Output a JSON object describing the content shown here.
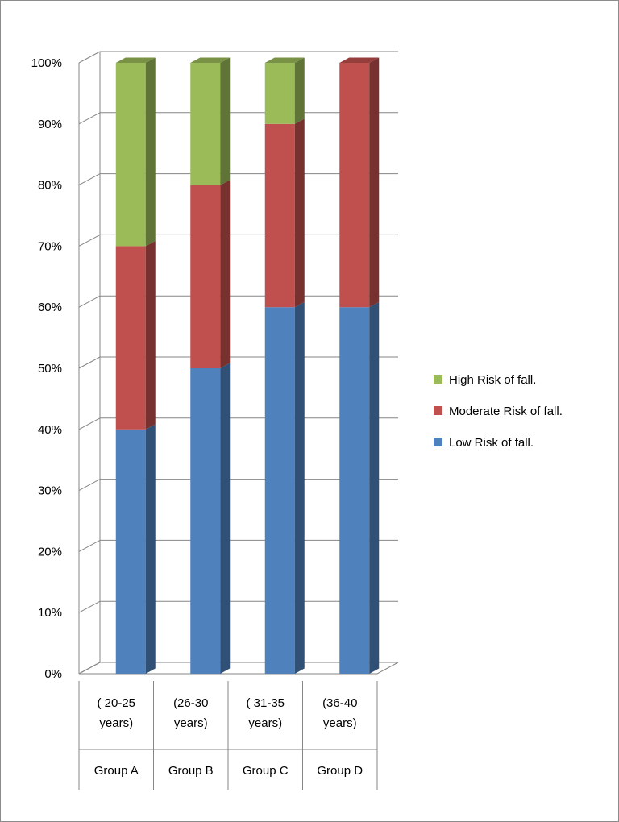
{
  "chart_data": {
    "type": "bar",
    "stacked": true,
    "three_d": true,
    "percent_stacked": true,
    "categories": [
      {
        "range": [
          "( 20-25",
          "years)"
        ],
        "group": "Group A"
      },
      {
        "range": [
          "(26-30",
          "years)"
        ],
        "group": "Group B"
      },
      {
        "range": [
          "( 31-35",
          "years)"
        ],
        "group": "Group C"
      },
      {
        "range": [
          "(36-40",
          "years)"
        ],
        "group": "Group D"
      }
    ],
    "series": [
      {
        "name": "Low Risk of fall.",
        "color": "#4f81bd",
        "values": [
          40,
          50,
          60,
          60
        ]
      },
      {
        "name": "Moderate Risk of fall.",
        "color": "#c0504d",
        "values": [
          30,
          30,
          30,
          40
        ]
      },
      {
        "name": "High Risk of fall.",
        "color": "#9bbb59",
        "values": [
          30,
          20,
          10,
          0
        ]
      }
    ],
    "legend_order": [
      "High Risk of fall.",
      "Moderate Risk of fall.",
      "Low Risk of fall."
    ],
    "y_ticks": [
      "0%",
      "10%",
      "20%",
      "30%",
      "40%",
      "50%",
      "60%",
      "70%",
      "80%",
      "90%",
      "100%"
    ],
    "ylim": [
      0,
      100
    ],
    "grid": true,
    "legend_position": "right"
  }
}
